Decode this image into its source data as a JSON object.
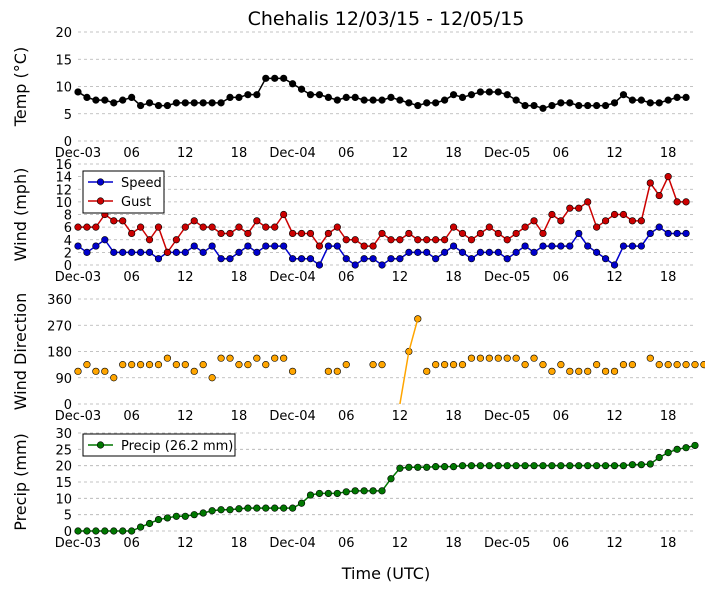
{
  "title": "Chehalis 12/03/15 - 12/05/15",
  "xlabel": "Time (UTC)",
  "x_tick_labels": [
    "Dec-03",
    "06",
    "12",
    "18",
    "Dec-04",
    "06",
    "12",
    "18",
    "Dec-05",
    "06",
    "12",
    "18"
  ],
  "chart_data": [
    {
      "type": "line",
      "ylabel": "Temp (°C)",
      "ylim": [
        0,
        20
      ],
      "yticks": [
        0,
        5,
        10,
        15,
        20
      ],
      "grid": true,
      "x_unit": "hours since Dec-03 00 UTC",
      "series": [
        {
          "color": "#000000",
          "values": [
            9,
            8,
            7.5,
            7.5,
            7,
            7.5,
            8,
            6.5,
            7,
            6.5,
            6.5,
            7,
            7,
            7,
            7,
            7,
            7,
            8,
            8,
            8.5,
            8.5,
            11.5,
            11.5,
            11.5,
            10.5,
            9.5,
            8.5,
            8.5,
            8,
            7.5,
            8,
            8,
            7.5,
            7.5,
            7.5,
            8,
            7.5,
            7,
            6.5,
            7,
            7,
            7.5,
            8.5,
            8,
            8.5,
            9,
            9,
            9,
            8.5,
            7.5,
            6.5,
            6.5,
            6,
            6.5,
            7,
            7,
            6.5,
            6.5,
            6.5,
            6.5,
            7,
            8.5,
            7.5,
            7.5,
            7,
            7,
            7.5,
            8,
            8
          ]
        }
      ]
    },
    {
      "type": "line",
      "ylabel": "Wind (mph)",
      "ylim": [
        0,
        16
      ],
      "yticks": [
        0,
        2,
        4,
        6,
        8,
        10,
        12,
        14,
        16
      ],
      "grid": true,
      "legend": "top-left",
      "series": [
        {
          "name": "Speed",
          "color": "#0000cc",
          "values": [
            3,
            2,
            3,
            4,
            2,
            2,
            2,
            2,
            2,
            1,
            2,
            2,
            2,
            3,
            2,
            3,
            1,
            1,
            2,
            3,
            2,
            3,
            3,
            3,
            1,
            1,
            1,
            0,
            3,
            3,
            1,
            0,
            1,
            1,
            0,
            1,
            1,
            2,
            2,
            2,
            1,
            2,
            3,
            2,
            1,
            2,
            2,
            2,
            1,
            2,
            3,
            2,
            3,
            3,
            3,
            3,
            5,
            3,
            2,
            1,
            0,
            3,
            3,
            3,
            5,
            6,
            5,
            5,
            5
          ]
        },
        {
          "name": "Gust",
          "color": "#cc0000",
          "values": [
            6,
            6,
            6,
            8,
            7,
            7,
            5,
            6,
            4,
            6,
            2,
            4,
            6,
            7,
            6,
            6,
            5,
            5,
            6,
            5,
            7,
            6,
            6,
            8,
            5,
            5,
            5,
            3,
            5,
            6,
            4,
            4,
            3,
            3,
            5,
            4,
            4,
            5,
            4,
            4,
            4,
            4,
            6,
            5,
            4,
            5,
            6,
            5,
            4,
            5,
            6,
            7,
            5,
            8,
            7,
            9,
            9,
            10,
            6,
            7,
            8,
            8,
            7,
            7,
            13,
            11,
            14,
            10,
            10
          ]
        }
      ]
    },
    {
      "type": "scatter",
      "ylabel": "Wind Direction",
      "ylim": [
        0,
        360
      ],
      "yticks": [
        0,
        90,
        180,
        270,
        360
      ],
      "grid": true,
      "series": [
        {
          "color": "#ffa500",
          "values": [
            112,
            135,
            112,
            112,
            90,
            135,
            135,
            135,
            135,
            135,
            157,
            135,
            135,
            112,
            135,
            90,
            157,
            157,
            135,
            135,
            157,
            135,
            157,
            157,
            112,
            null,
            null,
            null,
            112,
            112,
            135,
            null,
            null,
            135,
            135,
            null,
            null,
            180,
            292,
            112,
            135,
            135,
            135,
            135,
            157,
            157,
            157,
            157,
            157,
            157,
            135,
            157,
            135,
            112,
            135,
            112,
            112,
            112,
            135,
            112,
            112,
            135,
            135,
            null,
            157,
            135,
            135,
            135,
            135,
            135,
            135,
            135
          ]
        },
        {
          "color": "#ffa500",
          "line_segments": [
            [
              36,
              37,
              38
            ]
          ]
        }
      ]
    },
    {
      "type": "line",
      "ylabel": "Precip (mm)",
      "ylim": [
        0,
        30
      ],
      "yticks": [
        0,
        5,
        10,
        15,
        20,
        25,
        30
      ],
      "grid": true,
      "legend": "top-left",
      "series": [
        {
          "name": "Precip (26.2 mm)",
          "color": "#007700",
          "values": [
            0,
            0,
            0,
            0,
            0,
            0,
            0,
            1.2,
            2.3,
            3.5,
            4,
            4.5,
            4.5,
            5,
            5.5,
            6.2,
            6.5,
            6.5,
            6.8,
            7,
            7,
            7,
            7,
            7,
            7,
            8.5,
            11,
            11.5,
            11.5,
            11.5,
            12,
            12.3,
            12.3,
            12.3,
            12.3,
            16,
            19.2,
            19.5,
            19.5,
            19.5,
            19.7,
            19.7,
            19.7,
            20,
            20,
            20,
            20,
            20,
            20,
            20,
            20,
            20,
            20,
            20,
            20,
            20,
            20,
            20,
            20,
            20,
            20,
            20,
            20.3,
            20.3,
            20.5,
            22.5,
            24,
            25,
            25.5,
            26.2
          ]
        }
      ]
    }
  ]
}
